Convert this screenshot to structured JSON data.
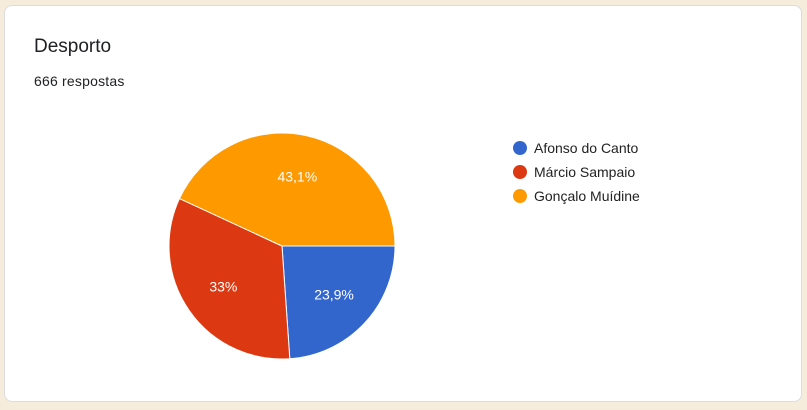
{
  "header": {
    "title": "Desporto",
    "responses": "666 respostas"
  },
  "chart_data": {
    "type": "pie",
    "categories": [
      "Afonso do Canto",
      "Márcio Sampaio",
      "Gonçalo Muídine"
    ],
    "values": [
      23.9,
      33,
      43.1
    ],
    "labels": [
      "23,9%",
      "33%",
      "43,1%"
    ],
    "colors": [
      "#3366cc",
      "#dc3912",
      "#ff9900"
    ],
    "legend": "right"
  }
}
